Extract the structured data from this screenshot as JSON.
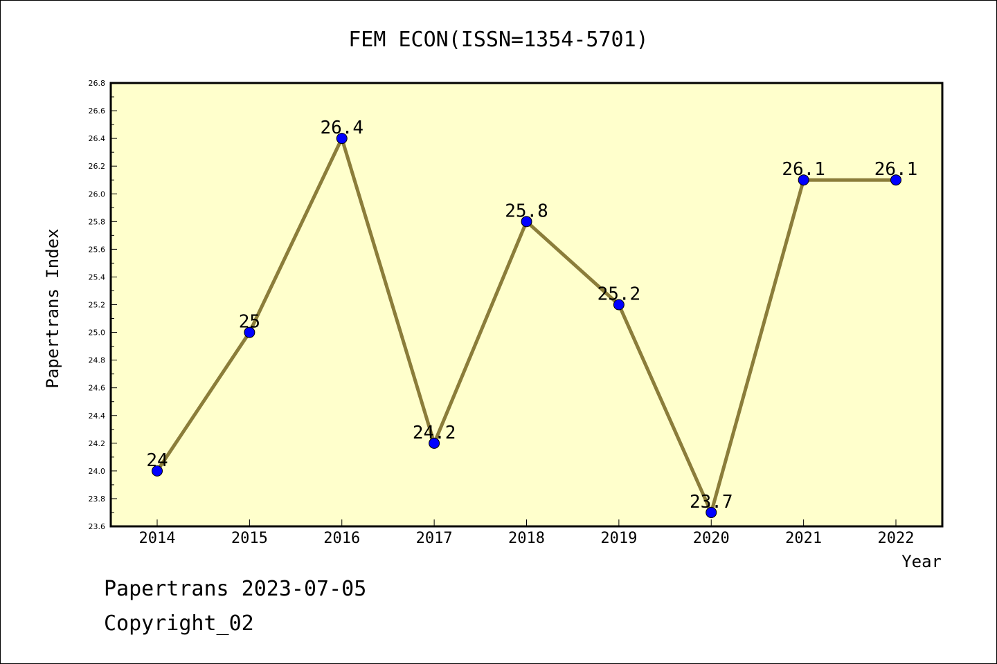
{
  "chart_data": {
    "type": "line",
    "title": "FEM ECON(ISSN=1354-5701)",
    "xlabel": "Year",
    "ylabel": "Papertrans Index",
    "categories": [
      "2014",
      "2015",
      "2016",
      "2017",
      "2018",
      "2019",
      "2020",
      "2021",
      "2022"
    ],
    "series": [
      {
        "values": [
          24.0,
          25.0,
          26.4,
          24.2,
          25.8,
          25.2,
          23.7,
          26.1,
          26.1
        ]
      }
    ],
    "data_labels": [
      "24",
      "25",
      "26.4",
      "24.2",
      "25.8",
      "25.2",
      "23.7",
      "26.1",
      "26.1"
    ],
    "ylim": [
      23.6,
      26.8
    ],
    "yticks": [
      "23.6",
      "23.8",
      "24.0",
      "24.2",
      "24.4",
      "24.6",
      "24.8",
      "25.0",
      "25.2",
      "25.4",
      "25.6",
      "25.8",
      "26.0",
      "26.2",
      "26.4",
      "26.6",
      "26.8"
    ],
    "grid": false,
    "legend": "none",
    "colors": {
      "plot_background": "#ffffcc",
      "line": "#8b7d3a",
      "marker": "#0000ff"
    }
  },
  "footer": {
    "line1": "Papertrans 2023-07-05",
    "line2": "Copyright_02"
  }
}
